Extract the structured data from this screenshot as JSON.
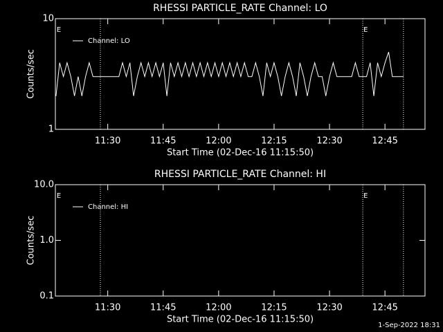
{
  "chart_data": [
    {
      "type": "line",
      "title": "RHESSI PARTICLE_RATE Channel: LO",
      "ylabel": "Counts/sec",
      "xlabel": "Start Time (02-Dec-16 11:15:50)",
      "log_y": true,
      "ylim": [
        1,
        10
      ],
      "yticks": [
        1,
        10
      ],
      "xlim": [
        "11:15:50",
        "12:55:50"
      ],
      "xticks": [
        "11:30",
        "11:45",
        "12:00",
        "12:15",
        "12:30",
        "12:45"
      ],
      "vlines": [
        "11:28",
        "12:39",
        "12:50"
      ],
      "annotations": [
        {
          "text": "E",
          "x": "11:16"
        },
        {
          "text": "E",
          "x": "12:39"
        }
      ],
      "x": [
        "11:16",
        "11:17",
        "11:18",
        "11:19",
        "11:20",
        "11:21",
        "11:22",
        "11:23",
        "11:24",
        "11:25",
        "11:26",
        "11:27",
        "11:28",
        "11:29",
        "11:30",
        "11:31",
        "11:32",
        "11:33",
        "11:34",
        "11:35",
        "11:36",
        "11:37",
        "11:38",
        "11:39",
        "11:40",
        "11:41",
        "11:42",
        "11:43",
        "11:44",
        "11:45",
        "11:46",
        "11:47",
        "11:48",
        "11:49",
        "11:50",
        "11:51",
        "11:52",
        "11:53",
        "11:54",
        "11:55",
        "11:56",
        "11:57",
        "11:58",
        "11:59",
        "12:00",
        "12:01",
        "12:02",
        "12:03",
        "12:04",
        "12:05",
        "12:06",
        "12:07",
        "12:08",
        "12:09",
        "12:10",
        "12:11",
        "12:12",
        "12:13",
        "12:14",
        "12:15",
        "12:16",
        "12:17",
        "12:18",
        "12:19",
        "12:20",
        "12:21",
        "12:22",
        "12:23",
        "12:24",
        "12:25",
        "12:26",
        "12:27",
        "12:28",
        "12:29",
        "12:30",
        "12:31",
        "12:32",
        "12:33",
        "12:34",
        "12:35",
        "12:36",
        "12:37",
        "12:38",
        "12:39",
        "12:40",
        "12:41",
        "12:42",
        "12:43",
        "12:44",
        "12:45",
        "12:46",
        "12:47",
        "12:48",
        "12:49",
        "12:50"
      ],
      "series": [
        {
          "name": "Channel: LO",
          "color": "#ffffff",
          "values": [
            2,
            4,
            3,
            4,
            3,
            2,
            3,
            2,
            3,
            4,
            3,
            3,
            3,
            3,
            3,
            3,
            3,
            3,
            4,
            3,
            4,
            2,
            3,
            4,
            3,
            4,
            3,
            4,
            3,
            4,
            2,
            4,
            3,
            4,
            3,
            4,
            3,
            4,
            3,
            4,
            3,
            4,
            3,
            4,
            3,
            4,
            3,
            4,
            3,
            4,
            3,
            4,
            3,
            3,
            4,
            3,
            2,
            4,
            3,
            4,
            3,
            2,
            3,
            4,
            3,
            2,
            4,
            3,
            2,
            3,
            4,
            3,
            3,
            2,
            3,
            4,
            3,
            3,
            3,
            3,
            3,
            4,
            3,
            3,
            3,
            4,
            2,
            4,
            3,
            4,
            5,
            3,
            3,
            3,
            3
          ]
        }
      ]
    },
    {
      "type": "line",
      "title": "RHESSI PARTICLE_RATE Channel: HI",
      "ylabel": "Counts/sec",
      "xlabel": "Start Time (02-Dec-16 11:15:50)",
      "log_y": true,
      "ylim": [
        0.1,
        10
      ],
      "yticks": [
        0.1,
        {
          "value": 1,
          "label": "1.0"
        },
        {
          "value": 10,
          "label": "10.0"
        }
      ],
      "xlim": [
        "11:15:50",
        "12:55:50"
      ],
      "xticks": [
        "11:30",
        "11:45",
        "12:00",
        "12:15",
        "12:30",
        "12:45"
      ],
      "vlines": [
        "11:28",
        "12:39",
        "12:50"
      ],
      "annotations": [
        {
          "text": "E",
          "x": "11:16"
        },
        {
          "text": "E",
          "x": "12:39"
        }
      ],
      "x": [],
      "series": [
        {
          "name": "Channel: HI",
          "color": "#ffffff",
          "values": []
        }
      ]
    }
  ],
  "footer": "1-Sep-2022 18:31"
}
